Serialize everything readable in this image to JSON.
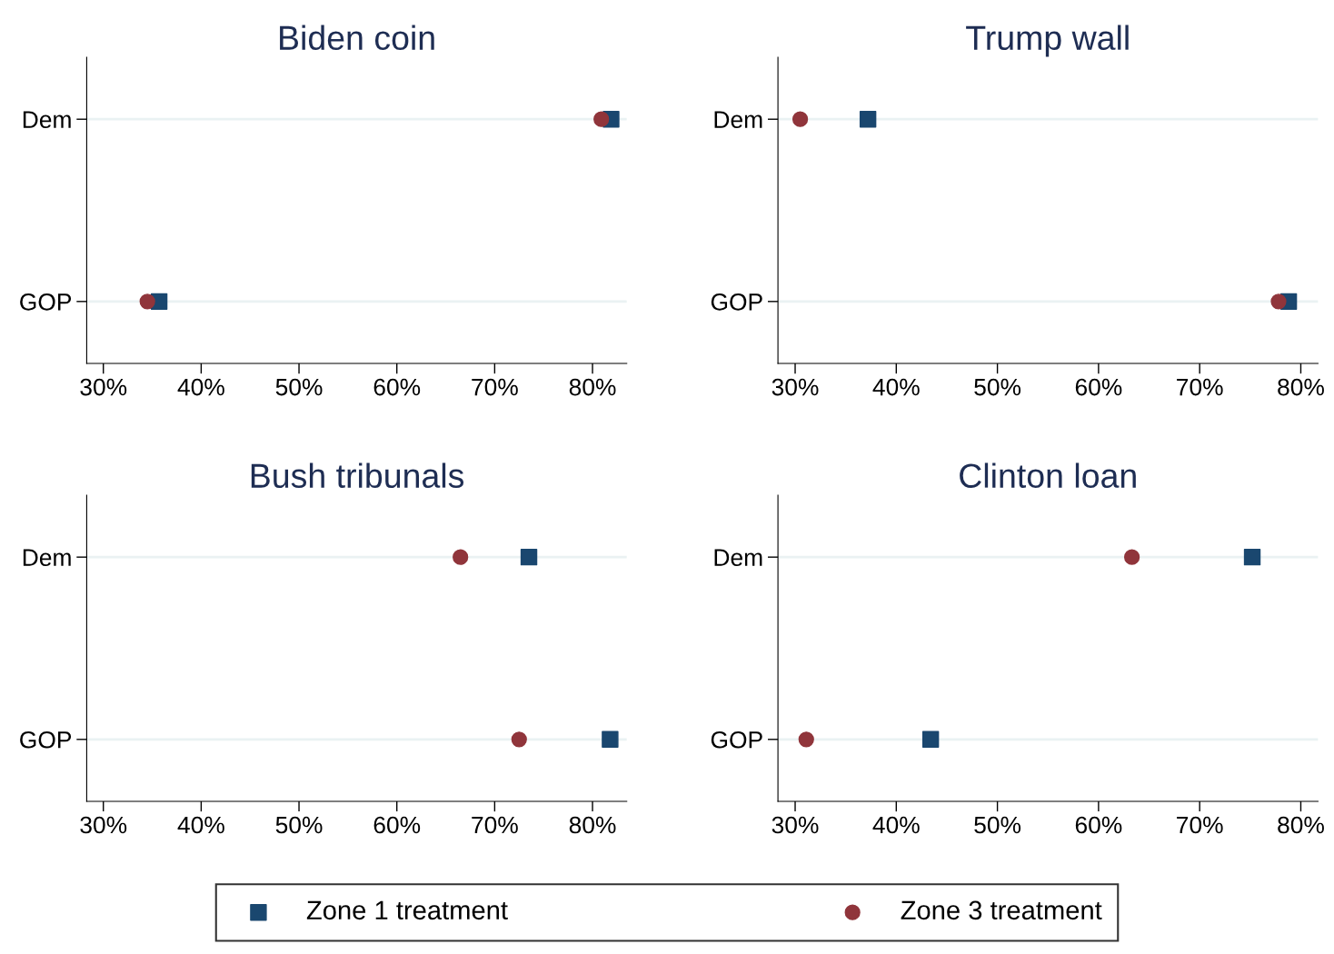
{
  "chart_data": [
    {
      "type": "scatter",
      "title": "Biden coin",
      "orientation": "horizontal",
      "categories": [
        "Dem",
        "GOP"
      ],
      "xlim": [
        28.3,
        83.5
      ],
      "xticks": [
        {
          "value": 30,
          "label": "30%"
        },
        {
          "value": 40,
          "label": "40%"
        },
        {
          "value": 50,
          "label": "50%"
        },
        {
          "value": 60,
          "label": "60%"
        },
        {
          "value": 70,
          "label": "70%"
        },
        {
          "value": 80,
          "label": "80%"
        }
      ],
      "grid": "y",
      "legend": "bottom",
      "series": [
        {
          "name": "Zone 1 treatment",
          "color": "#1a476f",
          "marker": "square",
          "values": [
            81.9,
            35.7
          ]
        },
        {
          "name": "Zone 3 treatment",
          "color": "#90353b",
          "marker": "circle",
          "values": [
            80.9,
            34.5
          ]
        }
      ]
    },
    {
      "type": "scatter",
      "title": "Trump wall",
      "orientation": "horizontal",
      "categories": [
        "Dem",
        "GOP"
      ],
      "xlim": [
        28.3,
        81.7
      ],
      "xticks": [
        {
          "value": 30,
          "label": "30%"
        },
        {
          "value": 40,
          "label": "40%"
        },
        {
          "value": 50,
          "label": "50%"
        },
        {
          "value": 60,
          "label": "60%"
        },
        {
          "value": 70,
          "label": "70%"
        },
        {
          "value": 80,
          "label": "80%"
        }
      ],
      "grid": "y",
      "series": [
        {
          "color": "#1a476f",
          "marker": "square",
          "values": [
            37.2,
            78.8
          ]
        },
        {
          "color": "#90353b",
          "marker": "circle",
          "values": [
            30.5,
            77.8
          ]
        }
      ]
    },
    {
      "type": "scatter",
      "title": "Bush tribunals",
      "orientation": "horizontal",
      "categories": [
        "Dem",
        "GOP"
      ],
      "xlim": [
        28.3,
        83.5
      ],
      "xticks": [
        {
          "value": 30,
          "label": "30%"
        },
        {
          "value": 40,
          "label": "40%"
        },
        {
          "value": 50,
          "label": "50%"
        },
        {
          "value": 60,
          "label": "60%"
        },
        {
          "value": 70,
          "label": "70%"
        },
        {
          "value": 80,
          "label": "80%"
        }
      ],
      "grid": "y",
      "series": [
        {
          "color": "#1a476f",
          "marker": "square",
          "values": [
            73.5,
            81.8
          ]
        },
        {
          "color": "#90353b",
          "marker": "circle",
          "values": [
            66.5,
            72.5
          ]
        }
      ]
    },
    {
      "type": "scatter",
      "title": "Clinton loan",
      "orientation": "horizontal",
      "categories": [
        "Dem",
        "GOP"
      ],
      "xlim": [
        28.3,
        81.7
      ],
      "xticks": [
        {
          "value": 30,
          "label": "30%"
        },
        {
          "value": 40,
          "label": "40%"
        },
        {
          "value": 50,
          "label": "50%"
        },
        {
          "value": 60,
          "label": "60%"
        },
        {
          "value": 70,
          "label": "70%"
        },
        {
          "value": 80,
          "label": "80%"
        }
      ],
      "grid": "y",
      "series": [
        {
          "color": "#1a476f",
          "marker": "square",
          "values": [
            75.2,
            43.4
          ]
        },
        {
          "color": "#90353b",
          "marker": "circle",
          "values": [
            63.3,
            31.1
          ]
        }
      ]
    }
  ]
}
